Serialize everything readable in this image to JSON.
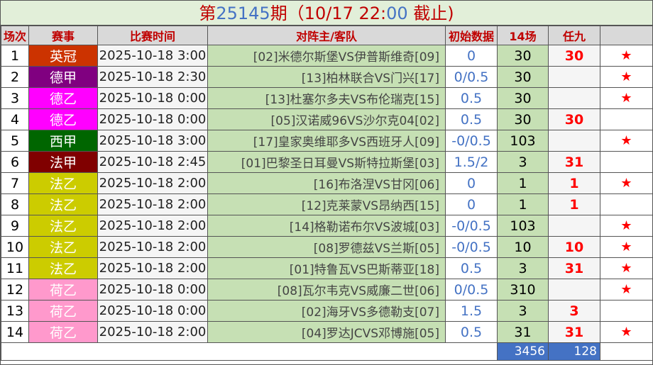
{
  "title": {
    "prefix": "第",
    "period": "25145",
    "mid": "期（10/17 22:",
    "mins": "00",
    "suffix": " 截止)"
  },
  "headers": [
    "场次",
    "赛事",
    "比赛时间",
    "对阵主/客队",
    "初始数据",
    "14场",
    "任九",
    ""
  ],
  "rows": [
    {
      "no": "1",
      "league": "英冠",
      "color": "#cc3300",
      "time": "2025-10-18 3:00",
      "match": "[02]米德尔斯堡VS伊普斯维奇[09]",
      "init": "0",
      "c14": "30",
      "r9": "30",
      "star": "★"
    },
    {
      "no": "2",
      "league": "德甲",
      "color": "#800080",
      "time": "2025-10-18 2:30",
      "match": "[13]柏林联合VS门兴[17]",
      "init": "0/0.5",
      "c14": "30",
      "r9": "",
      "star": "★"
    },
    {
      "no": "3",
      "league": "德乙",
      "color": "#ff00ff",
      "time": "2025-10-18 0:00",
      "match": "[13]杜塞尔多夫VS布伦瑞克[15]",
      "init": "0.5",
      "c14": "30",
      "r9": "",
      "star": "★"
    },
    {
      "no": "4",
      "league": "德乙",
      "color": "#ff00ff",
      "time": "2025-10-18 0:00",
      "match": "[05]汉诺威96VS沙尔克04[02]",
      "init": "0.5",
      "c14": "30",
      "r9": "30",
      "star": ""
    },
    {
      "no": "5",
      "league": "西甲",
      "color": "#006600",
      "time": "2025-10-18 3:00",
      "match": "[17]皇家奥维耶多VS西班牙人[09]",
      "init": "-0/0.5",
      "c14": "103",
      "r9": "",
      "star": "★"
    },
    {
      "no": "6",
      "league": "法甲",
      "color": "#800000",
      "time": "2025-10-18 2:45",
      "match": "[01]巴黎圣日耳曼VS斯特拉斯堡[03]",
      "init": "1.5/2",
      "c14": "3",
      "r9": "31",
      "star": ""
    },
    {
      "no": "7",
      "league": "法乙",
      "color": "#cccc00",
      "time": "2025-10-18 2:00",
      "match": "[16]布洛涅VS甘冈[06]",
      "init": "0",
      "c14": "1",
      "r9": "1",
      "star": "★"
    },
    {
      "no": "8",
      "league": "法乙",
      "color": "#cccc00",
      "time": "2025-10-18 2:00",
      "match": "[12]克莱蒙VS昂纳西[15]",
      "init": "0",
      "c14": "1",
      "r9": "1",
      "star": ""
    },
    {
      "no": "9",
      "league": "法乙",
      "color": "#cccc00",
      "time": "2025-10-18 2:00",
      "match": "[14]格勒诺布尔VS波城[03]",
      "init": "-0/0.5",
      "c14": "103",
      "r9": "",
      "star": "★"
    },
    {
      "no": "10",
      "league": "法乙",
      "color": "#cccc00",
      "time": "2025-10-18 2:00",
      "match": "[08]罗德兹VS兰斯[05]",
      "init": "-0/0.5",
      "c14": "10",
      "r9": "10",
      "star": "★"
    },
    {
      "no": "11",
      "league": "法乙",
      "color": "#cccc00",
      "time": "2025-10-18 2:00",
      "match": "[01]特鲁瓦VS巴斯蒂亚[18]",
      "init": "0.5",
      "c14": "3",
      "r9": "31",
      "star": "★"
    },
    {
      "no": "12",
      "league": "荷乙",
      "color": "#ff99cc",
      "time": "2025-10-18 0:00",
      "match": "[08]瓦尔韦克VS威廉二世[06]",
      "init": "0/0.5",
      "c14": "310",
      "r9": "",
      "star": "★"
    },
    {
      "no": "13",
      "league": "荷乙",
      "color": "#ff99cc",
      "time": "2025-10-18 0:00",
      "match": "[02]海牙VS多德勒支[07]",
      "init": "1.5",
      "c14": "3",
      "r9": "3",
      "star": ""
    },
    {
      "no": "14",
      "league": "荷乙",
      "color": "#ff99cc",
      "time": "2025-10-18 2:00",
      "match": "[04]罗达JCVS邓博施[05]",
      "init": "0.5",
      "c14": "31",
      "r9": "31",
      "star": "★"
    }
  ],
  "totals": {
    "c14": "3456",
    "r9": "128"
  }
}
